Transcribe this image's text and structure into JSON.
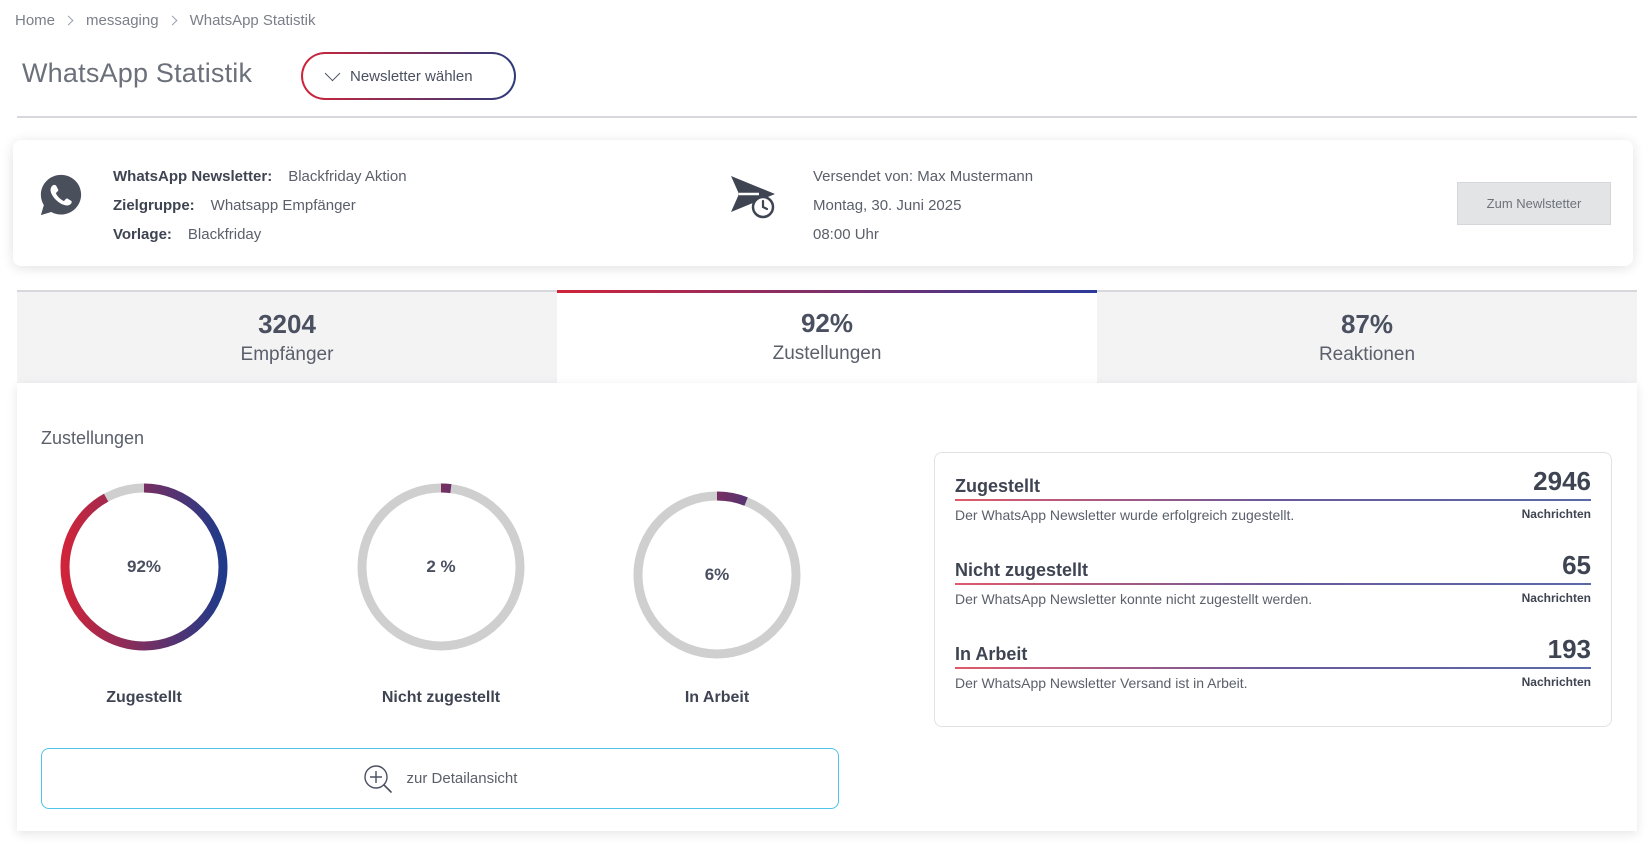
{
  "breadcrumb": [
    "Home",
    "messaging",
    "WhatsApp Statistik"
  ],
  "page_title": "WhatsApp Statistik",
  "newsletter_select": {
    "label": "Newsletter wählen"
  },
  "info": {
    "newsletter_label": "WhatsApp Newsletter:",
    "newsletter_value": "Blackfriday Aktion",
    "target_label": "Zielgruppe:",
    "target_value": "Whatsapp Empfänger",
    "template_label": "Vorlage:",
    "template_value": "Blackfriday",
    "sent_by": "Versendet von: Max Mustermann",
    "date": "Montag, 30. Juni 2025",
    "time": "08:00 Uhr",
    "button_label": "Zum Newlstetter"
  },
  "tabs": [
    {
      "value": "3204",
      "label": "Empfänger"
    },
    {
      "value": "92%",
      "label": "Zustellungen"
    },
    {
      "value": "87%",
      "label": "Reaktionen"
    }
  ],
  "active_tab_index": 1,
  "panel": {
    "title": "Zustellungen",
    "donuts": [
      {
        "pct_text": "92%",
        "fraction": 0.92,
        "label": "Zugestellt"
      },
      {
        "pct_text": "2 %",
        "fraction": 0.02,
        "label": "Nicht zugestellt"
      },
      {
        "pct_text": "6%",
        "fraction": 0.06,
        "label": "In Arbeit"
      }
    ],
    "detail_button": "zur Detailansicht",
    "stats": [
      {
        "name": "Zugestellt",
        "value": "2946",
        "desc": "Der WhatsApp Newsletter wurde erfolgreich zugestellt.",
        "unit": "Nachrichten"
      },
      {
        "name": "Nicht zugestellt",
        "value": "65",
        "desc": "Der WhatsApp Newsletter konnte nicht zugestellt werden.",
        "unit": "Nachrichten"
      },
      {
        "name": "In Arbeit",
        "value": "193",
        "desc": "Der WhatsApp Newsletter Versand ist in Arbeit.",
        "unit": "Nachrichten"
      }
    ]
  },
  "colors": {
    "accent_red": "#d0243a",
    "accent_blue": "#1f3a8a",
    "track_gray": "#cfcfcf",
    "detail_border": "#4fc3e8"
  },
  "icons": [
    "whatsapp-icon",
    "send-clock-icon",
    "chevron-down-icon",
    "zoom-in-icon"
  ]
}
